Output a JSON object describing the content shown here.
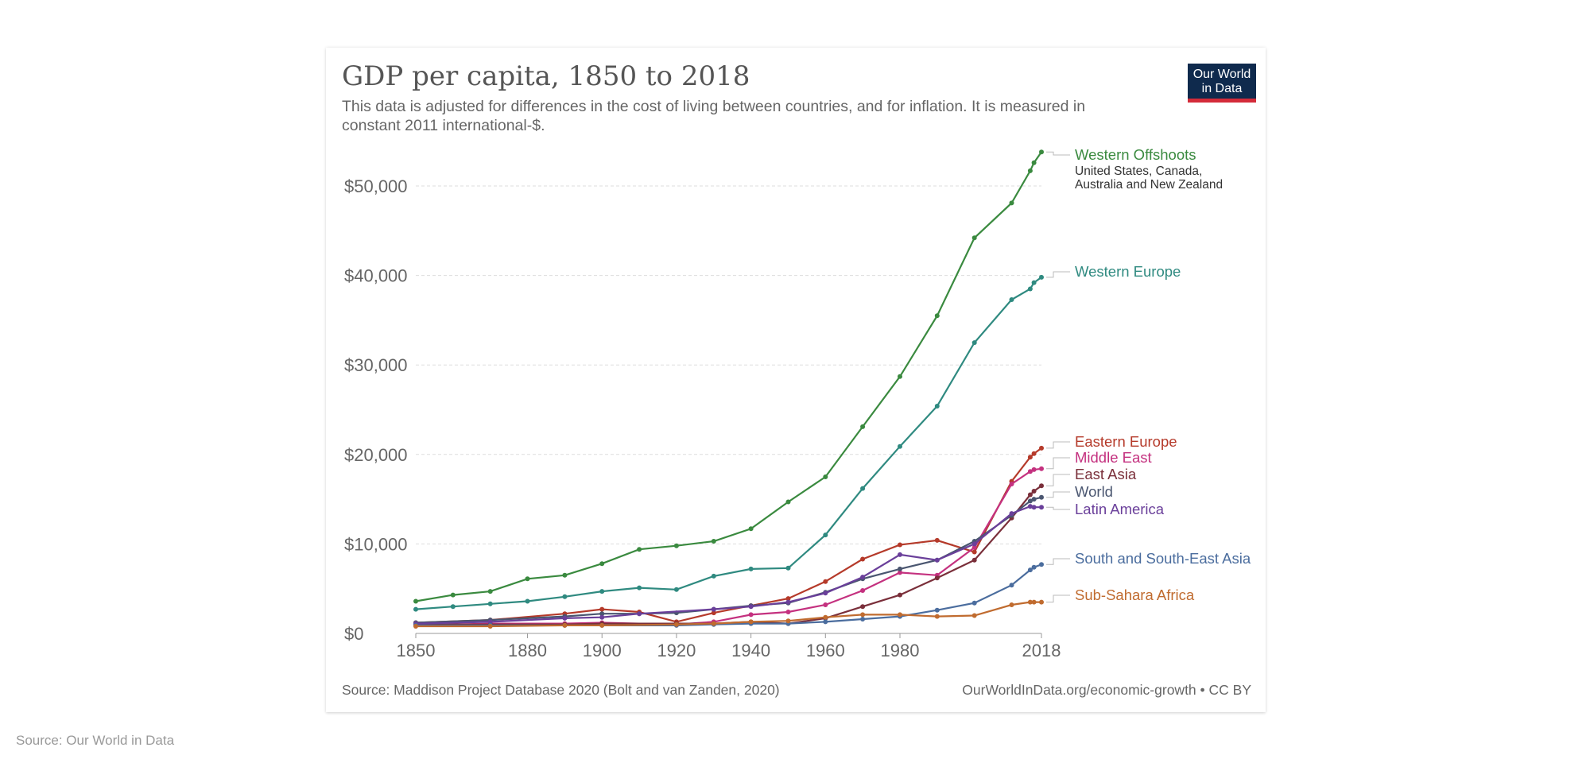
{
  "header": {
    "title": "GDP per capita, 1850 to 2018",
    "subtitle": "This data is adjusted for differences in the cost of living between countries, and for inflation. It is measured in constant 2011 international-$.",
    "logo_line1": "Our World",
    "logo_line2": "in Data"
  },
  "footer": {
    "source": "Source: Maddison Project Database 2020 (Bolt and van Zanden, 2020)",
    "url": "OurWorldInData.org/economic-growth • CC BY"
  },
  "page_source": "Source: Our World in Data",
  "chart_data": {
    "type": "line",
    "title": "GDP per capita, 1850 to 2018",
    "xlabel": "",
    "ylabel": "",
    "xlim": [
      1850,
      2018
    ],
    "ylim": [
      0,
      50000
    ],
    "x_ticks": [
      "1850",
      "1880",
      "1900",
      "1920",
      "1940",
      "1960",
      "1980",
      "2018"
    ],
    "x_tick_values": [
      1850,
      1880,
      1900,
      1920,
      1940,
      1960,
      1980,
      2018
    ],
    "y_ticks": [
      "$0",
      "$10,000",
      "$20,000",
      "$30,000",
      "$40,000",
      "$50,000"
    ],
    "y_tick_values": [
      0,
      10000,
      20000,
      30000,
      40000,
      50000
    ],
    "grid": "horizontal dashed",
    "legend": "inline labels right",
    "series": [
      {
        "name": "Western Offshoots",
        "note": "United States, Canada, Australia and New Zealand",
        "color": "#3a8a3f",
        "points": [
          [
            1850,
            3600
          ],
          [
            1860,
            4300
          ],
          [
            1870,
            4700
          ],
          [
            1880,
            6100
          ],
          [
            1890,
            6500
          ],
          [
            1900,
            7800
          ],
          [
            1910,
            9400
          ],
          [
            1920,
            9800
          ],
          [
            1930,
            10300
          ],
          [
            1940,
            11700
          ],
          [
            1950,
            14700
          ],
          [
            1960,
            17500
          ],
          [
            1970,
            23100
          ],
          [
            1980,
            28700
          ],
          [
            1990,
            35500
          ],
          [
            2000,
            44200
          ],
          [
            2010,
            48100
          ],
          [
            2015,
            51700
          ],
          [
            2016,
            52600
          ],
          [
            2018,
            53800
          ]
        ]
      },
      {
        "name": "Western Europe",
        "color": "#2f8a80",
        "points": [
          [
            1850,
            2700
          ],
          [
            1860,
            3000
          ],
          [
            1870,
            3300
          ],
          [
            1880,
            3600
          ],
          [
            1890,
            4100
          ],
          [
            1900,
            4700
          ],
          [
            1910,
            5100
          ],
          [
            1920,
            4900
          ],
          [
            1930,
            6400
          ],
          [
            1940,
            7200
          ],
          [
            1950,
            7300
          ],
          [
            1960,
            11000
          ],
          [
            1970,
            16200
          ],
          [
            1980,
            20900
          ],
          [
            1990,
            25400
          ],
          [
            2000,
            32500
          ],
          [
            2010,
            37300
          ],
          [
            2015,
            38500
          ],
          [
            2016,
            39200
          ],
          [
            2018,
            39800
          ]
        ]
      },
      {
        "name": "Eastern Europe",
        "color": "#b53a2a",
        "points": [
          [
            1850,
            1200
          ],
          [
            1870,
            1500
          ],
          [
            1890,
            2200
          ],
          [
            1900,
            2700
          ],
          [
            1910,
            2400
          ],
          [
            1920,
            1300
          ],
          [
            1930,
            2300
          ],
          [
            1940,
            3100
          ],
          [
            1950,
            3900
          ],
          [
            1960,
            5800
          ],
          [
            1970,
            8300
          ],
          [
            1980,
            9900
          ],
          [
            1990,
            10400
          ],
          [
            2000,
            9100
          ],
          [
            2010,
            17000
          ],
          [
            2015,
            19700
          ],
          [
            2016,
            20100
          ],
          [
            2018,
            20700
          ]
        ]
      },
      {
        "name": "Middle East",
        "color": "#c4317f",
        "points": [
          [
            1850,
            900
          ],
          [
            1870,
            1100
          ],
          [
            1890,
            1100
          ],
          [
            1900,
            1200
          ],
          [
            1920,
            1000
          ],
          [
            1930,
            1300
          ],
          [
            1940,
            2100
          ],
          [
            1950,
            2400
          ],
          [
            1960,
            3200
          ],
          [
            1970,
            4800
          ],
          [
            1980,
            6800
          ],
          [
            1990,
            6500
          ],
          [
            2000,
            9600
          ],
          [
            2010,
            16700
          ],
          [
            2015,
            18100
          ],
          [
            2016,
            18300
          ],
          [
            2018,
            18400
          ]
        ]
      },
      {
        "name": "East Asia",
        "color": "#7a2f3a",
        "points": [
          [
            1850,
            1000
          ],
          [
            1870,
            1000
          ],
          [
            1890,
            1000
          ],
          [
            1900,
            1100
          ],
          [
            1920,
            1100
          ],
          [
            1930,
            1100
          ],
          [
            1940,
            1300
          ],
          [
            1950,
            1100
          ],
          [
            1960,
            1700
          ],
          [
            1970,
            3000
          ],
          [
            1980,
            4300
          ],
          [
            1990,
            6200
          ],
          [
            2000,
            8200
          ],
          [
            2010,
            12900
          ],
          [
            2015,
            15500
          ],
          [
            2016,
            15900
          ],
          [
            2018,
            16500
          ]
        ]
      },
      {
        "name": "World",
        "color": "#4a5670",
        "points": [
          [
            1850,
            1200
          ],
          [
            1870,
            1500
          ],
          [
            1890,
            1900
          ],
          [
            1900,
            2200
          ],
          [
            1910,
            2200
          ],
          [
            1920,
            2300
          ],
          [
            1930,
            2700
          ],
          [
            1940,
            3100
          ],
          [
            1950,
            3400
          ],
          [
            1960,
            4600
          ],
          [
            1970,
            6100
          ],
          [
            1980,
            7200
          ],
          [
            1990,
            8200
          ],
          [
            2000,
            10300
          ],
          [
            2010,
            13200
          ],
          [
            2015,
            14800
          ],
          [
            2016,
            15000
          ],
          [
            2018,
            15200
          ]
        ]
      },
      {
        "name": "Latin America",
        "color": "#6a3f9a",
        "points": [
          [
            1850,
            1100
          ],
          [
            1870,
            1300
          ],
          [
            1890,
            1700
          ],
          [
            1900,
            1800
          ],
          [
            1910,
            2200
          ],
          [
            1930,
            2700
          ],
          [
            1940,
            3000
          ],
          [
            1950,
            3500
          ],
          [
            1960,
            4500
          ],
          [
            1970,
            6300
          ],
          [
            1980,
            8800
          ],
          [
            1990,
            8200
          ],
          [
            2000,
            10000
          ],
          [
            2010,
            13400
          ],
          [
            2015,
            14200
          ],
          [
            2016,
            14100
          ],
          [
            2018,
            14100
          ]
        ]
      },
      {
        "name": "South and South-East Asia",
        "color": "#4b6d9e",
        "points": [
          [
            1850,
            900
          ],
          [
            1870,
            900
          ],
          [
            1890,
            900
          ],
          [
            1900,
            900
          ],
          [
            1920,
            900
          ],
          [
            1930,
            1000
          ],
          [
            1940,
            1100
          ],
          [
            1950,
            1100
          ],
          [
            1960,
            1300
          ],
          [
            1970,
            1600
          ],
          [
            1980,
            1900
          ],
          [
            1990,
            2600
          ],
          [
            2000,
            3400
          ],
          [
            2010,
            5400
          ],
          [
            2015,
            7100
          ],
          [
            2016,
            7400
          ],
          [
            2018,
            7700
          ]
        ]
      },
      {
        "name": "Sub-Sahara Africa",
        "color": "#c06b2f",
        "points": [
          [
            1850,
            800
          ],
          [
            1870,
            800
          ],
          [
            1890,
            900
          ],
          [
            1900,
            900
          ],
          [
            1920,
            1000
          ],
          [
            1930,
            1100
          ],
          [
            1940,
            1300
          ],
          [
            1950,
            1400
          ],
          [
            1960,
            1800
          ],
          [
            1970,
            2100
          ],
          [
            1980,
            2100
          ],
          [
            1990,
            1900
          ],
          [
            2000,
            2000
          ],
          [
            2010,
            3200
          ],
          [
            2015,
            3500
          ],
          [
            2016,
            3500
          ],
          [
            2018,
            3500
          ]
        ]
      }
    ]
  }
}
